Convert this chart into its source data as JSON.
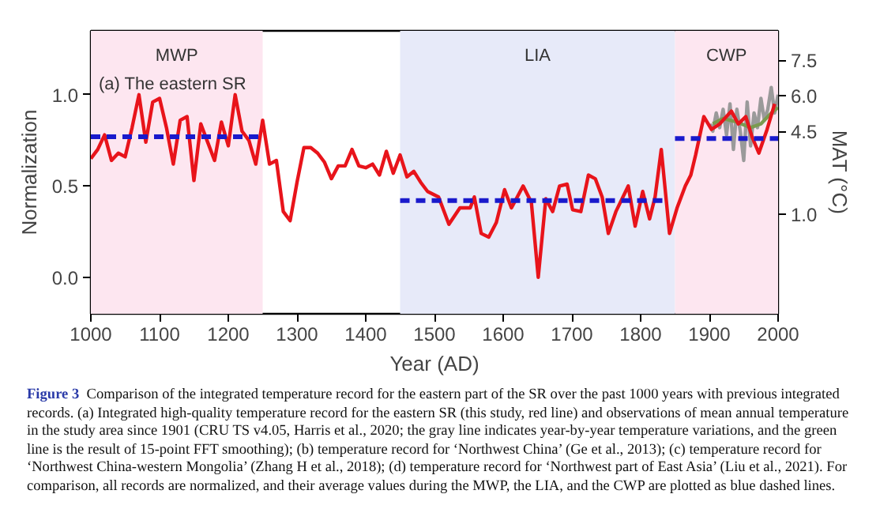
{
  "chart_data": {
    "type": "line",
    "xlabel": "Year (AD)",
    "ylabel": "Normalization",
    "y2label": "MAT (°C)",
    "xlim": [
      1000,
      2000
    ],
    "xticks": [
      1000,
      1100,
      1200,
      1300,
      1400,
      1500,
      1600,
      1700,
      1800,
      1900,
      2000
    ],
    "ylim": [
      -0.2,
      1.35
    ],
    "yticks": [
      {
        "value": 0,
        "label": "0.0"
      },
      {
        "value": 0.5,
        "label": "0.5"
      },
      {
        "value": 1,
        "label": "1.0"
      }
    ],
    "y2lim": [
      -3.2,
      8.75
    ],
    "y2ticks": [
      {
        "value": 1,
        "label": "1.0"
      },
      {
        "value": 4.5,
        "label": "4.5"
      },
      {
        "value": 6,
        "label": "6.0"
      },
      {
        "value": 7.5,
        "label": "7.5"
      }
    ],
    "bands": [
      {
        "axis": "x",
        "from": 1000,
        "to": 1250,
        "label": "MWP",
        "color": "#fde6f0"
      },
      {
        "axis": "x",
        "from": 1450,
        "to": 1850,
        "label": "LIA",
        "color": "#e7eaf9"
      },
      {
        "axis": "x",
        "from": 1850,
        "to": 2000,
        "label": "CWP",
        "color": "#fde6f0"
      }
    ],
    "series": [
      {
        "color": "#9a9a9a",
        "x": [
          1901,
          1905,
          1910,
          1915,
          1920,
          1925,
          1930,
          1935,
          1940,
          1945,
          1950,
          1955,
          1960,
          1965,
          1970,
          1975,
          1980,
          1985,
          1990,
          1995,
          2000
        ],
        "values": [
          0.84,
          0.8,
          0.9,
          0.82,
          0.92,
          0.78,
          0.95,
          0.7,
          0.92,
          0.8,
          0.64,
          0.96,
          0.72,
          0.9,
          0.82,
          0.98,
          0.86,
          0.92,
          1.04,
          0.9,
          1.0
        ]
      },
      {
        "color": "#7a9a50",
        "x": [
          1905,
          1920,
          1940,
          1960,
          1975,
          1990,
          2000
        ],
        "values": [
          0.84,
          0.87,
          0.85,
          0.82,
          0.84,
          0.9,
          0.93
        ]
      },
      {
        "color": "#e8141b",
        "x": [
          1000,
          1010,
          1020,
          1030,
          1040,
          1050,
          1060,
          1070,
          1080,
          1090,
          1100,
          1110,
          1120,
          1130,
          1140,
          1150,
          1160,
          1170,
          1180,
          1190,
          1200,
          1210,
          1220,
          1230,
          1240,
          1250,
          1260,
          1270,
          1280,
          1290,
          1300,
          1310,
          1320,
          1330,
          1340,
          1350,
          1360,
          1370,
          1380,
          1390,
          1400,
          1410,
          1420,
          1430,
          1440,
          1450,
          1460,
          1470,
          1480,
          1490,
          1506,
          1521,
          1537,
          1552,
          1558,
          1568,
          1579,
          1590,
          1602,
          1612,
          1629,
          1641,
          1651,
          1662,
          1672,
          1682,
          1693,
          1701,
          1713,
          1724,
          1734,
          1744,
          1753,
          1764,
          1782,
          1792,
          1803,
          1813,
          1821,
          1830,
          1842,
          1853,
          1865,
          1873,
          1880,
          1892,
          1903,
          1915,
          1932,
          1942,
          1953,
          1962,
          1972,
          1984,
          1995
        ],
        "values": [
          0.65,
          0.7,
          0.78,
          0.64,
          0.68,
          0.66,
          0.82,
          1.0,
          0.74,
          0.96,
          0.98,
          0.82,
          0.62,
          0.86,
          0.88,
          0.53,
          0.84,
          0.74,
          0.64,
          0.85,
          0.72,
          1.0,
          0.8,
          0.75,
          0.62,
          0.86,
          0.62,
          0.64,
          0.36,
          0.31,
          0.52,
          0.71,
          0.71,
          0.68,
          0.63,
          0.54,
          0.61,
          0.61,
          0.7,
          0.61,
          0.6,
          0.62,
          0.56,
          0.69,
          0.57,
          0.67,
          0.55,
          0.58,
          0.52,
          0.47,
          0.44,
          0.29,
          0.38,
          0.38,
          0.44,
          0.24,
          0.22,
          0.3,
          0.48,
          0.38,
          0.5,
          0.41,
          0.0,
          0.43,
          0.36,
          0.5,
          0.51,
          0.37,
          0.36,
          0.56,
          0.54,
          0.44,
          0.24,
          0.36,
          0.5,
          0.28,
          0.47,
          0.32,
          0.44,
          0.7,
          0.24,
          0.38,
          0.5,
          0.56,
          0.67,
          0.88,
          0.81,
          0.84,
          0.91,
          0.84,
          0.88,
          0.77,
          0.68,
          0.81,
          0.95
        ]
      },
      {
        "color": "#1a1acc",
        "line_style": "dashed",
        "x": [
          1000,
          1245
        ],
        "values": [
          0.77,
          0.77
        ]
      },
      {
        "color": "#1a1acc",
        "line_style": "dashed",
        "x": [
          1450,
          1840
        ],
        "values": [
          0.42,
          0.42
        ]
      },
      {
        "color": "#1a1acc",
        "line_style": "dashed",
        "x": [
          1850,
          2000
        ],
        "values": [
          0.76,
          0.76
        ]
      }
    ],
    "annotations": [
      "(a) The eastern SR",
      "Figure 3",
      "Comparison of the integrated temperature record for the eastern part of the SR over the past 1000 years with previous integrated records. (a) Integrated high-quality temperature record for the eastern SR (this study, red line) and observations of mean annual temperature in the study area since 1901 (CRU TS v4.05, Harris et al., 2020; the gray line indicates year-by-year temperature variations, and the green line is the result of 15-point FFT smoothing); (b) temperature record for ‘Northwest China’ (Ge et al., 2013); (c) temperature record for ‘Northwest China-western Mongolia’ (Zhang H et al., 2018); (d) temperature record for ‘Northwest part of East Asia’ (Liu et al., 2021). For comparison, all records are normalized, and their average values during the MWP, the LIA, and the CWP are plotted as blue dashed lines."
    ]
  }
}
